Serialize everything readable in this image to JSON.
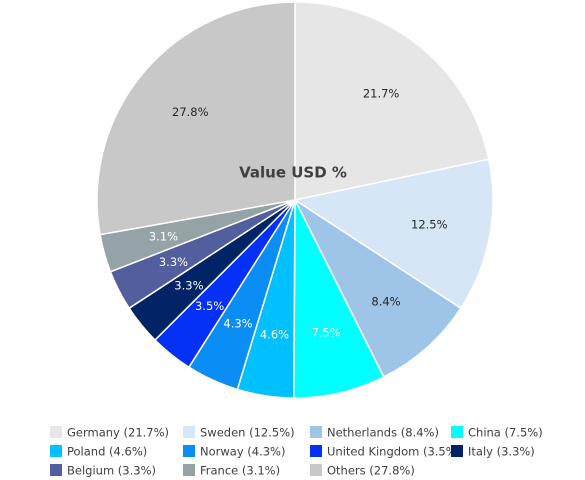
{
  "chart_data": {
    "type": "pie",
    "title": "Value USD %",
    "legend_position": "bottom",
    "slices": [
      {
        "name": "Germany",
        "value": 21.7,
        "label": "21.7%",
        "legend": "Germany (21.7%)",
        "color": "#e6e6e6",
        "label_color": "#262626"
      },
      {
        "name": "Sweden",
        "value": 12.5,
        "label": "12.5%",
        "legend": "Sweden (12.5%)",
        "color": "#d6e6f7",
        "label_color": "#262626"
      },
      {
        "name": "Netherlands",
        "value": 8.4,
        "label": "8.4%",
        "legend": "Netherlands (8.4%)",
        "color": "#9ec4e8",
        "label_color": "#262626"
      },
      {
        "name": "China",
        "value": 7.5,
        "label": "7.5%",
        "legend": "China (7.5%)",
        "color": "#00ffff",
        "label_color": "#ffffff"
      },
      {
        "name": "Poland",
        "value": 4.6,
        "label": "4.6%",
        "legend": "Poland (4.6%)",
        "color": "#00c0ff",
        "label_color": "#ffffff"
      },
      {
        "name": "Norway",
        "value": 4.3,
        "label": "4.3%",
        "legend": "Norway (4.3%)",
        "color": "#0a8ef5",
        "label_color": "#ffffff"
      },
      {
        "name": "United Kingdom",
        "value": 3.5,
        "label": "3.5%",
        "legend": "United Kingdom (3.5%)",
        "color": "#0530f5",
        "label_color": "#ffffff"
      },
      {
        "name": "Italy",
        "value": 3.3,
        "label": "3.3%",
        "legend": "Italy (3.3%)",
        "color": "#002466",
        "label_color": "#ffffff"
      },
      {
        "name": "Belgium",
        "value": 3.3,
        "label": "3.3%",
        "legend": "Belgium (3.3%)",
        "color": "#525e9e",
        "label_color": "#ffffff"
      },
      {
        "name": "France",
        "value": 3.1,
        "label": "3.1%",
        "legend": "France (3.1%)",
        "color": "#95a3a6",
        "label_color": "#ffffff"
      },
      {
        "name": "Others",
        "value": 27.8,
        "label": "27.8%",
        "legend": "Others (27.8%)",
        "color": "#c8c8c8",
        "label_color": "#262626"
      }
    ]
  }
}
